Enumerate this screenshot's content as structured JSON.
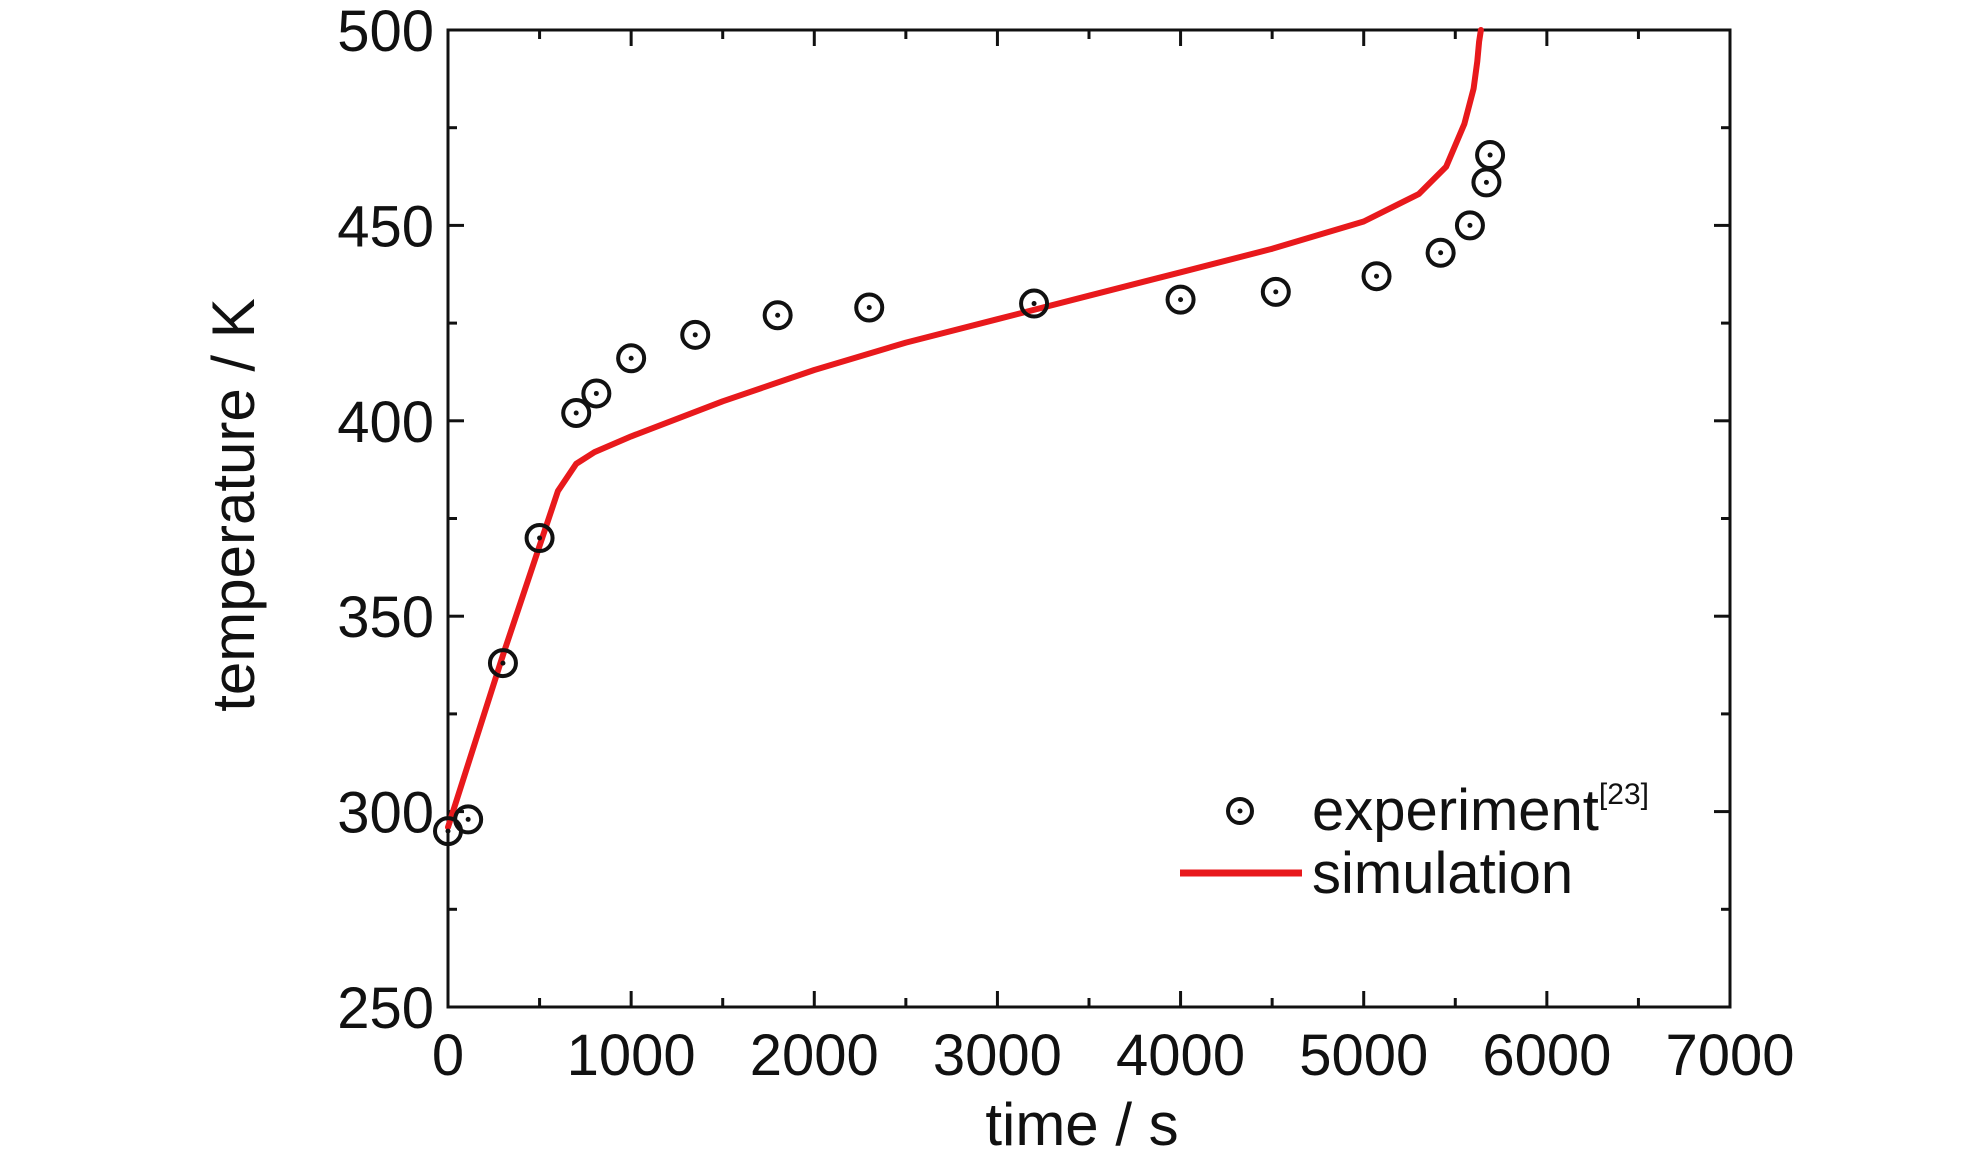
{
  "chart_data": {
    "type": "scatter",
    "xlabel": "time / s",
    "ylabel": "temperature / K",
    "xlim": [
      0,
      7000
    ],
    "ylim": [
      250,
      500
    ],
    "x_ticks": [
      0,
      1000,
      2000,
      3000,
      4000,
      5000,
      6000,
      7000
    ],
    "y_ticks": [
      250,
      300,
      350,
      400,
      450,
      500
    ],
    "grid": false,
    "legend_position": "bottom-right",
    "series": [
      {
        "name": "experiment",
        "name_superscript": "[23]",
        "type": "scatter",
        "marker": "circle-dot",
        "color": "#111111",
        "x": [
          0,
          110,
          300,
          500,
          700,
          810,
          1000,
          1350,
          1800,
          2300,
          3200,
          4000,
          4520,
          5070,
          5420,
          5580,
          5670,
          5690
        ],
        "y": [
          295,
          298,
          338,
          370,
          402,
          407,
          416,
          422,
          427,
          429,
          430,
          431,
          433,
          437,
          443,
          450,
          461,
          468
        ]
      },
      {
        "name": "simulation",
        "type": "line",
        "color": "#e8191c",
        "x": [
          0,
          300,
          600,
          700,
          800,
          1000,
          1500,
          2000,
          2500,
          3000,
          3500,
          4000,
          4500,
          5000,
          5300,
          5450,
          5550,
          5600,
          5620,
          5630,
          5640
        ],
        "y": [
          296,
          340,
          382,
          389,
          392,
          396,
          405,
          413,
          420,
          426,
          432,
          438,
          444,
          451,
          458,
          465,
          476,
          485,
          492,
          497,
          500
        ]
      }
    ]
  }
}
